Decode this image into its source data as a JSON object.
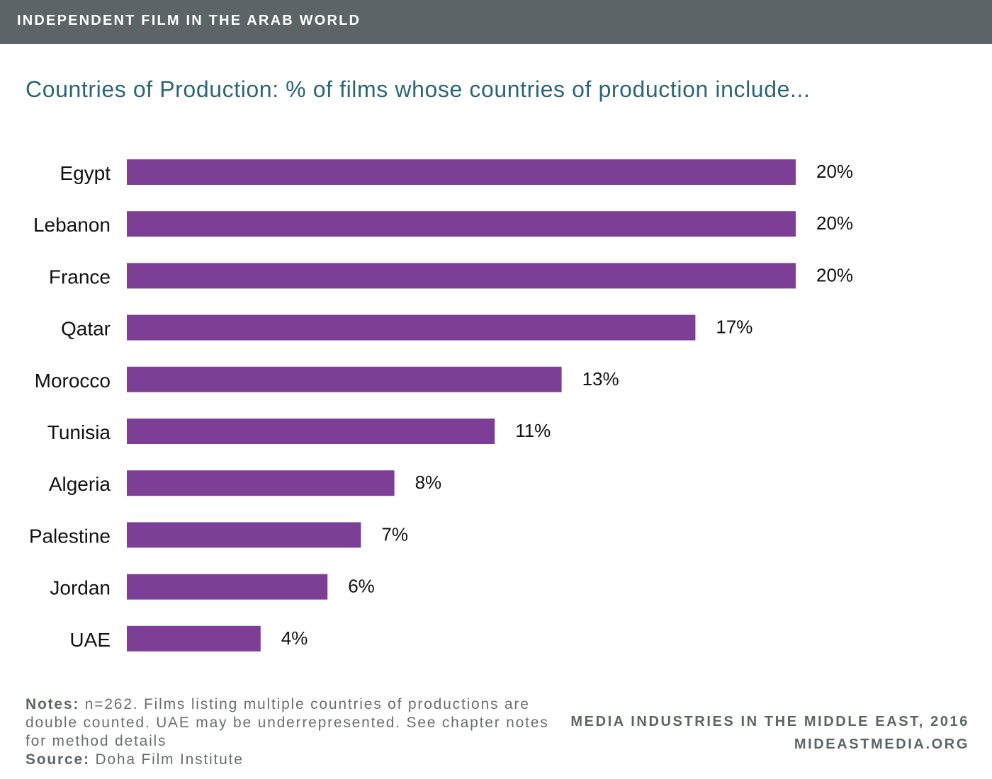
{
  "banner": {
    "title": "INDEPENDENT FILM IN THE ARAB WORLD"
  },
  "colors": {
    "banner": "#5c6468",
    "title": "#2b6577",
    "bar": "#7d3f96"
  },
  "chart_data": {
    "type": "bar",
    "orientation": "horizontal",
    "title": "Countries of Production: % of films whose countries of production include...",
    "categories": [
      "Egypt",
      "Lebanon",
      "France",
      "Qatar",
      "Morocco",
      "Tunisia",
      "Algeria",
      "Palestine",
      "Jordan",
      "UAE"
    ],
    "values": [
      20,
      20,
      20,
      17,
      13,
      11,
      8,
      7,
      6,
      4
    ],
    "value_labels": [
      "20%",
      "20%",
      "20%",
      "17%",
      "13%",
      "11%",
      "8%",
      "7%",
      "6%",
      "4%"
    ],
    "xlim": [
      0,
      20
    ],
    "grid": false,
    "legend": "none"
  },
  "footer": {
    "notes_label": "Notes:",
    "notes_text": "n=262. Films listing multiple countries of productions are double counted. UAE may be underrepresented. See chapter notes for method details",
    "source_label": "Source:",
    "source_text": "Doha Film Institute",
    "credit_line1": "MEDIA INDUSTRIES IN THE MIDDLE EAST, 2016",
    "credit_line2": "MIDEASTMEDIA.ORG"
  }
}
